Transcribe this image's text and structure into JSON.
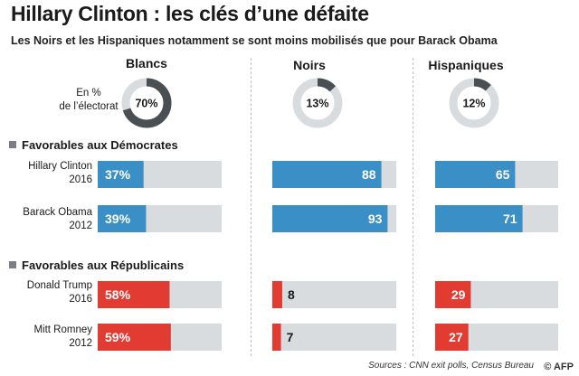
{
  "title": "Hillary Clinton : les clés d’une défaite",
  "subtitle": "Les Noirs et les Hispaniques notamment se sont moins mobilisés que pour Barack Obama",
  "share_label": [
    "En %",
    "de l’électorat"
  ],
  "sections": {
    "democrats": "Favorables aux Démocrates",
    "republicans": "Favorables aux Républicains"
  },
  "source": "Sources : CNN exit polls, Census Bureau",
  "logo": "© AFP",
  "colors": {
    "dem": "#3a8fc6",
    "rep": "#e23b32",
    "track": "#d9dcdf",
    "donut_fill": "#4a4f54",
    "donut_track": "#d9dcdf"
  },
  "chart_data": {
    "type": "bar",
    "groups": [
      "Blancs",
      "Noirs",
      "Hispaniques"
    ],
    "electorate_share": [
      70,
      13,
      12
    ],
    "electorate_share_labels": [
      "70%",
      "13%",
      "12%"
    ],
    "rows": [
      {
        "candidate": "Hillary Clinton",
        "year": "2016",
        "party": "dem",
        "values": [
          37,
          88,
          65
        ],
        "labels": [
          "37%",
          "88",
          "65"
        ]
      },
      {
        "candidate": "Barack Obama",
        "year": "2012",
        "party": "dem",
        "values": [
          39,
          93,
          71
        ],
        "labels": [
          "39%",
          "93",
          "71"
        ]
      },
      {
        "candidate": "Donald Trump",
        "year": "2016",
        "party": "rep",
        "values": [
          58,
          8,
          29
        ],
        "labels": [
          "58%",
          "8",
          "29"
        ]
      },
      {
        "candidate": "Mitt Romney",
        "year": "2012",
        "party": "rep",
        "values": [
          59,
          7,
          27
        ],
        "labels": [
          "59%",
          "7",
          "27"
        ]
      }
    ],
    "xlim": [
      0,
      100
    ]
  }
}
